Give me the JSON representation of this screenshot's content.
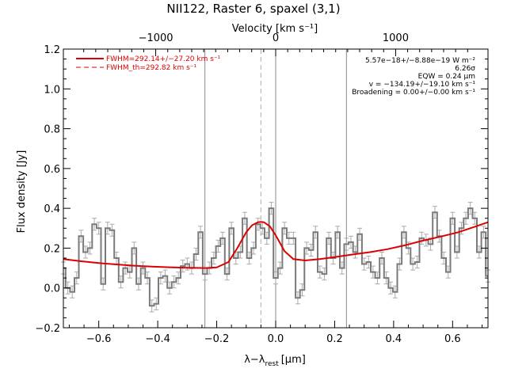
{
  "chart_data": {
    "type": "line",
    "title": "NII122, Raster 6, spaxel (3,1)",
    "xlabel_main": "λ−λ",
    "xlabel_sub": "rest",
    "xlabel_unit": "[μm]",
    "ylabel": "Flux density [Jy]",
    "top_axis_label": "Velocity [km s⁻¹]",
    "xlim": [
      -0.72,
      0.72
    ],
    "ylim": [
      -0.2,
      1.2
    ],
    "x_ticks": [
      -0.6,
      -0.4,
      -0.2,
      0.0,
      0.2,
      0.4,
      0.6
    ],
    "x_tick_labels": [
      "−0.6",
      "−0.4",
      "−0.2",
      "0.0",
      "0.2",
      "0.4",
      "0.6"
    ],
    "y_ticks": [
      -0.2,
      0.0,
      0.2,
      0.4,
      0.6,
      0.8,
      1.0,
      1.2
    ],
    "y_tick_labels": [
      "−0.2",
      "0.0",
      "0.2",
      "0.4",
      "0.6",
      "0.8",
      "1.0",
      "1.2"
    ],
    "top_ticks_kms": [
      -1000,
      0,
      1000
    ],
    "top_tick_labels": [
      "−1000",
      "0",
      "1000"
    ],
    "km_per_um": 2458,
    "vertical_lines_x": [
      -0.24,
      0.0,
      0.24
    ],
    "dashed_line_x": -0.05,
    "legend": [
      {
        "label": "FWHM=292.14+/−27.20 km s⁻¹",
        "style": "solid"
      },
      {
        "label": "FWHM_th=292.82 km s⁻¹",
        "style": "dashed"
      }
    ],
    "annotations": [
      "5.57e−18+/−8.88e−19 W m⁻²",
      "6.26σ",
      "EQW = 0.24 μm",
      "v = −134.19+/−19.10 km s⁻¹",
      "Broadening = 0.00+/−0.00 km s⁻¹"
    ],
    "series": [
      {
        "style": "steps",
        "x": [
          -0.72,
          -0.705,
          -0.69,
          -0.675,
          -0.66,
          -0.645,
          -0.63,
          -0.615,
          -0.6,
          -0.585,
          -0.57,
          -0.555,
          -0.54,
          -0.525,
          -0.51,
          -0.495,
          -0.48,
          -0.465,
          -0.45,
          -0.435,
          -0.42,
          -0.405,
          -0.39,
          -0.375,
          -0.36,
          -0.345,
          -0.33,
          -0.315,
          -0.3,
          -0.285,
          -0.27,
          -0.255,
          -0.24,
          -0.225,
          -0.21,
          -0.195,
          -0.18,
          -0.165,
          -0.15,
          -0.135,
          -0.12,
          -0.105,
          -0.09,
          -0.075,
          -0.06,
          -0.045,
          -0.03,
          -0.015,
          0.0,
          0.015,
          0.03,
          0.045,
          0.06,
          0.075,
          0.09,
          0.105,
          0.12,
          0.135,
          0.15,
          0.165,
          0.18,
          0.195,
          0.21,
          0.225,
          0.24,
          0.255,
          0.27,
          0.285,
          0.3,
          0.315,
          0.33,
          0.345,
          0.36,
          0.375,
          0.39,
          0.405,
          0.42,
          0.435,
          0.45,
          0.465,
          0.48,
          0.495,
          0.51,
          0.525,
          0.54,
          0.555,
          0.57,
          0.585,
          0.6,
          0.615,
          0.63,
          0.645,
          0.66,
          0.675,
          0.69,
          0.705,
          0.72
        ],
        "y": [
          0.1,
          0.0,
          -0.02,
          0.05,
          0.26,
          0.18,
          0.2,
          0.32,
          0.3,
          0.02,
          0.3,
          0.29,
          0.15,
          0.03,
          0.1,
          0.08,
          0.2,
          0.02,
          0.1,
          0.05,
          -0.09,
          -0.08,
          0.05,
          0.06,
          0.0,
          0.03,
          0.05,
          0.11,
          0.12,
          0.1,
          0.17,
          0.28,
          0.07,
          0.1,
          0.15,
          0.21,
          0.25,
          0.07,
          0.3,
          0.15,
          0.18,
          0.35,
          0.15,
          0.2,
          0.32,
          0.3,
          0.25,
          0.4,
          0.05,
          0.1,
          0.3,
          0.25,
          0.25,
          -0.05,
          -0.01,
          0.2,
          0.19,
          0.28,
          0.08,
          0.07,
          0.25,
          0.15,
          0.28,
          0.1,
          0.22,
          0.23,
          0.18,
          0.27,
          0.12,
          0.13,
          0.08,
          0.05,
          0.15,
          0.05,
          0.0,
          -0.02,
          0.12,
          0.28,
          0.2,
          0.12,
          0.13,
          0.25,
          0.24,
          0.22,
          0.38,
          0.26,
          0.15,
          0.08,
          0.35,
          0.18,
          0.3,
          0.35,
          0.4,
          0.35,
          0.18,
          0.28,
          0.06
        ]
      },
      {
        "style": "curve",
        "x": [
          -0.72,
          -0.66,
          -0.6,
          -0.54,
          -0.48,
          -0.42,
          -0.36,
          -0.3,
          -0.24,
          -0.2,
          -0.16,
          -0.13,
          -0.1,
          -0.08,
          -0.06,
          -0.05,
          -0.04,
          -0.02,
          0.0,
          0.03,
          0.06,
          0.1,
          0.15,
          0.2,
          0.26,
          0.32,
          0.38,
          0.44,
          0.5,
          0.56,
          0.62,
          0.68,
          0.72
        ],
        "y": [
          0.145,
          0.134,
          0.125,
          0.118,
          0.112,
          0.107,
          0.104,
          0.101,
          0.1,
          0.103,
          0.13,
          0.2,
          0.28,
          0.315,
          0.33,
          0.332,
          0.33,
          0.31,
          0.265,
          0.185,
          0.145,
          0.138,
          0.145,
          0.155,
          0.168,
          0.18,
          0.195,
          0.215,
          0.238,
          0.258,
          0.28,
          0.31,
          0.33
        ]
      }
    ]
  },
  "colors": {
    "data_line": "#7a7a7a",
    "error_bar": "#aaaaaa",
    "fit": "#dd0000",
    "vline": "#888888"
  }
}
